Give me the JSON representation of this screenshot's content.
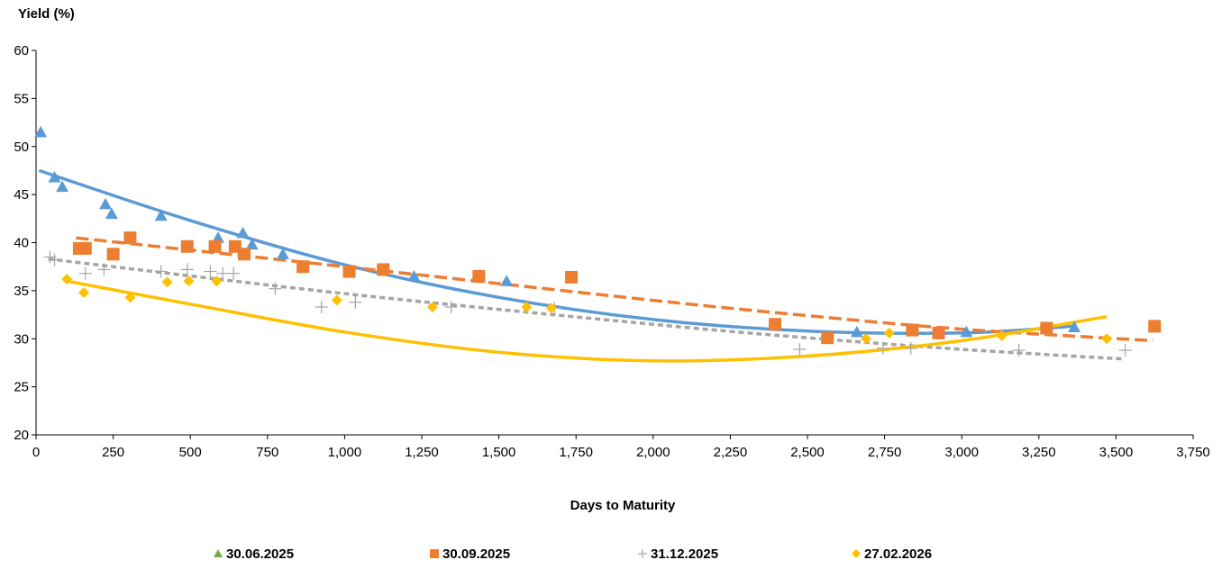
{
  "chart_data": {
    "type": "scatter",
    "title": "",
    "ylabel": "Yield (%)",
    "xlabel": "Days to Maturity",
    "xlim": [
      0,
      3750
    ],
    "ylim": [
      20,
      60
    ],
    "x_ticks": [
      0,
      250,
      500,
      750,
      1000,
      1250,
      1500,
      1750,
      2000,
      2250,
      2500,
      2750,
      3000,
      3250,
      3500,
      3750
    ],
    "x_tick_labels": [
      "0",
      "250",
      "500",
      "750",
      "1,000",
      "1,250",
      "1,500",
      "1,750",
      "2,000",
      "2,250",
      "2,500",
      "2,750",
      "3,000",
      "3,250",
      "3,500",
      "3,750"
    ],
    "y_ticks": [
      20,
      25,
      30,
      35,
      40,
      45,
      50,
      55,
      60
    ],
    "y_tick_labels": [
      "20",
      "25",
      "30",
      "35",
      "40",
      "45",
      "50",
      "55",
      "60"
    ],
    "grid": false,
    "legend_position": "bottom",
    "series": [
      {
        "name": "30.06.2025",
        "marker": "triangle",
        "color": "#5B9BD5",
        "points": [
          [
            15,
            51.5
          ],
          [
            60,
            46.8
          ],
          [
            85,
            45.8
          ],
          [
            225,
            44.0
          ],
          [
            245,
            43.0
          ],
          [
            405,
            42.8
          ],
          [
            590,
            40.5
          ],
          [
            670,
            41.0
          ],
          [
            700,
            39.8
          ],
          [
            800,
            38.8
          ],
          [
            1225,
            36.5
          ],
          [
            1525,
            36.0
          ],
          [
            2660,
            30.7
          ],
          [
            3015,
            30.7
          ],
          [
            3365,
            31.2
          ]
        ],
        "trendline": {
          "style": "solid",
          "color": "#5B9BD5",
          "x_range": [
            10,
            3360
          ],
          "y_points": [
            [
              10,
              47.5
            ],
            [
              500,
              42.3
            ],
            [
              1000,
              37.7
            ],
            [
              1500,
              34.3
            ],
            [
              2000,
              32.0
            ],
            [
              2500,
              30.8
            ],
            [
              3000,
              30.6
            ],
            [
              3360,
              31.3
            ]
          ]
        }
      },
      {
        "name": "30.09.2025",
        "marker": "square",
        "color": "#ED7D31",
        "points": [
          [
            140,
            39.4
          ],
          [
            160,
            39.4
          ],
          [
            250,
            38.8
          ],
          [
            305,
            40.5
          ],
          [
            490,
            39.6
          ],
          [
            580,
            39.6
          ],
          [
            645,
            39.6
          ],
          [
            675,
            38.8
          ],
          [
            865,
            37.5
          ],
          [
            1015,
            37.0
          ],
          [
            1125,
            37.2
          ],
          [
            1435,
            36.5
          ],
          [
            1735,
            36.4
          ],
          [
            2395,
            31.5
          ],
          [
            2565,
            30.1
          ],
          [
            2840,
            30.9
          ],
          [
            2925,
            30.6
          ],
          [
            3275,
            31.1
          ],
          [
            3625,
            31.3
          ]
        ],
        "trendline": {
          "style": "dashed",
          "color": "#ED7D31",
          "x_range": [
            130,
            3620
          ],
          "y_points": [
            [
              130,
              40.5
            ],
            [
              1000,
              37.5
            ],
            [
              2000,
              34.0
            ],
            [
              2500,
              32.4
            ],
            [
              3000,
              31.0
            ],
            [
              3620,
              29.8
            ]
          ]
        }
      },
      {
        "name": "31.12.2025",
        "marker": "plus",
        "color": "#A5A5A5",
        "points": [
          [
            45,
            38.5
          ],
          [
            60,
            38.2
          ],
          [
            160,
            36.8
          ],
          [
            220,
            37.2
          ],
          [
            405,
            37.0
          ],
          [
            490,
            37.2
          ],
          [
            565,
            37.0
          ],
          [
            605,
            36.8
          ],
          [
            640,
            36.8
          ],
          [
            775,
            35.2
          ],
          [
            925,
            33.3
          ],
          [
            1035,
            33.8
          ],
          [
            1345,
            33.3
          ],
          [
            1680,
            33.2
          ],
          [
            2475,
            28.9
          ],
          [
            2745,
            29.0
          ],
          [
            2835,
            29.0
          ],
          [
            3185,
            28.8
          ],
          [
            3530,
            28.8
          ]
        ],
        "trendline": {
          "style": "dotted",
          "color": "#A5A5A5",
          "x_range": [
            40,
            3520
          ],
          "y_points": [
            [
              40,
              38.3
            ],
            [
              1000,
              34.7
            ],
            [
              2000,
              31.5
            ],
            [
              2500,
              30.1
            ],
            [
              3000,
              28.9
            ],
            [
              3520,
              27.9
            ]
          ]
        }
      },
      {
        "name": "27.02.2026",
        "marker": "diamond",
        "color": "#FFC000",
        "points": [
          [
            100,
            36.2
          ],
          [
            155,
            34.8
          ],
          [
            305,
            34.3
          ],
          [
            425,
            35.9
          ],
          [
            495,
            36.0
          ],
          [
            585,
            36.0
          ],
          [
            975,
            34.0
          ],
          [
            1285,
            33.3
          ],
          [
            1590,
            33.3
          ],
          [
            1670,
            33.2
          ],
          [
            2690,
            30.0
          ],
          [
            2765,
            30.6
          ],
          [
            3130,
            30.3
          ],
          [
            3470,
            30.0
          ]
        ],
        "trendline": {
          "style": "solid",
          "color": "#FFC000",
          "x_range": [
            100,
            3470
          ],
          "y_points": [
            [
              100,
              36.0
            ],
            [
              500,
              33.6
            ],
            [
              1000,
              30.7
            ],
            [
              1500,
              28.6
            ],
            [
              2000,
              27.7
            ],
            [
              2500,
              28.2
            ],
            [
              3000,
              29.8
            ],
            [
              3470,
              32.3
            ]
          ]
        }
      }
    ]
  }
}
